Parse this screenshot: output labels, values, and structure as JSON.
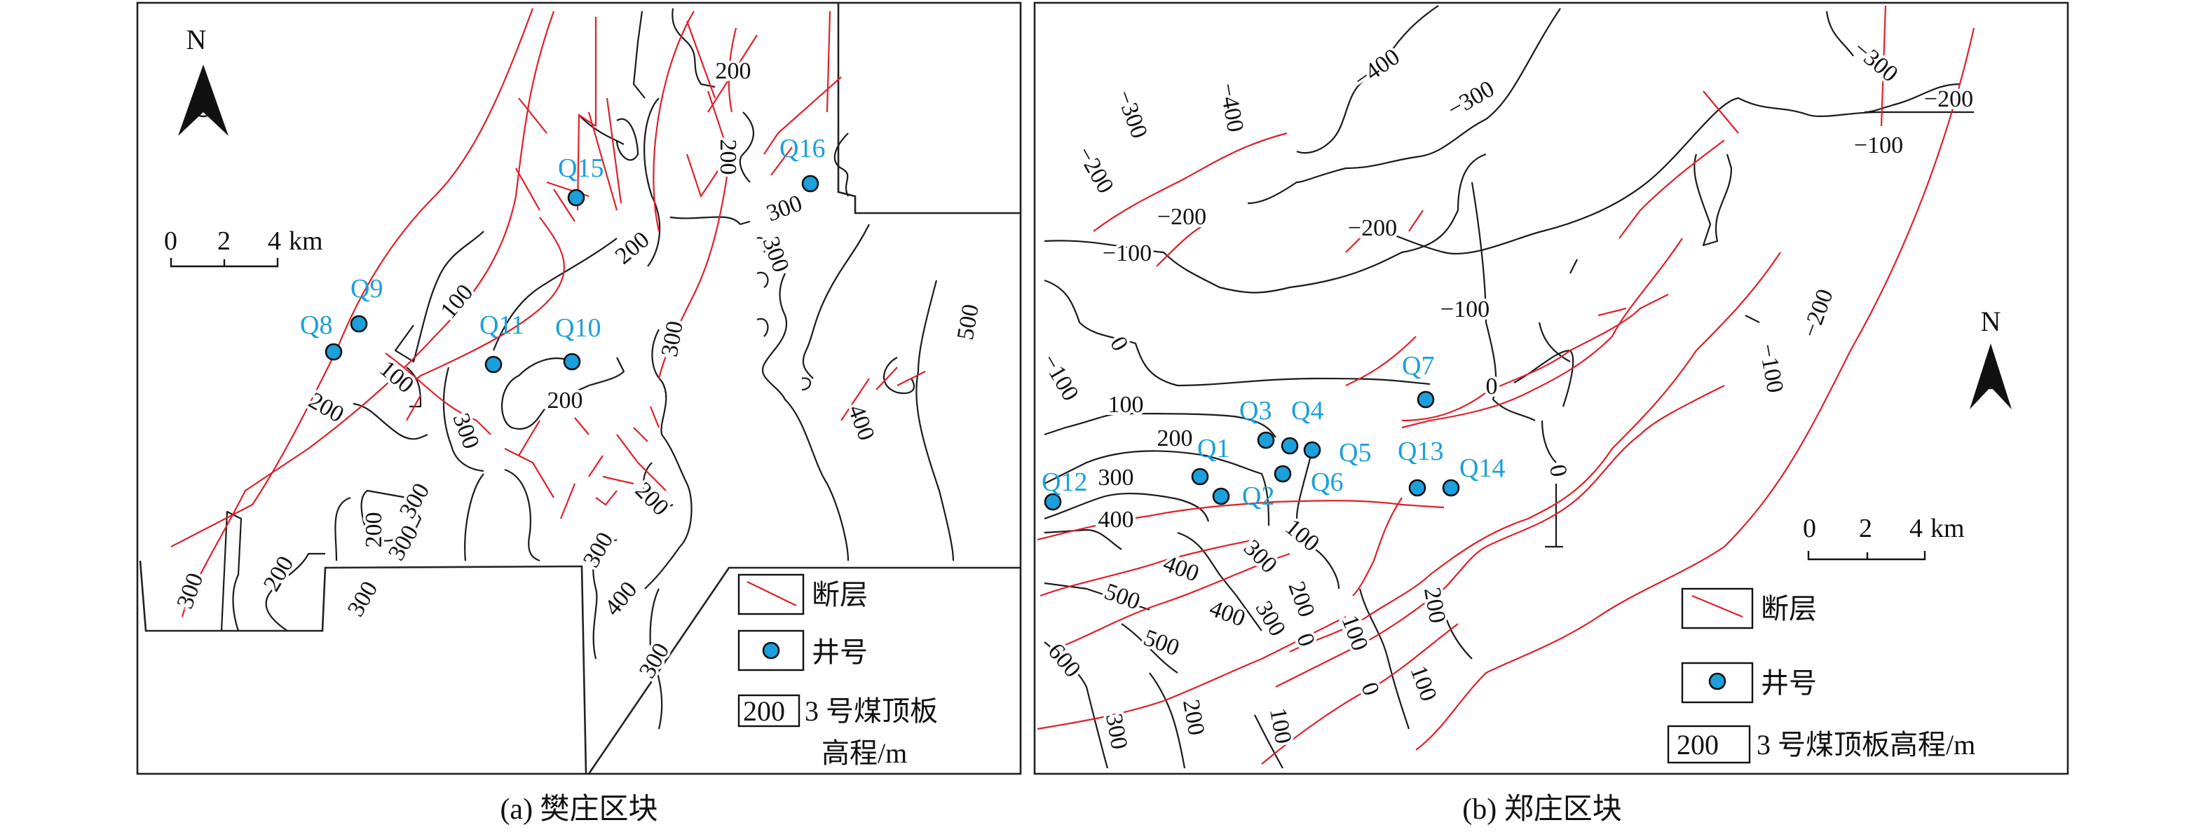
{
  "panels": [
    {
      "caption": "(a) 樊庄区块",
      "north_label": "N",
      "scale": {
        "ticks": [
          "0",
          "2",
          "4"
        ],
        "unit": "km"
      },
      "wells": [
        "Q15",
        "Q16",
        "Q9",
        "Q8",
        "Q11",
        "Q10"
      ],
      "contour_labels": [
        "200",
        "200",
        "300",
        "300",
        "200",
        "100",
        "100",
        "200",
        "200",
        "300",
        "300",
        "500",
        "400",
        "300",
        "200",
        "300",
        "300",
        "300",
        "200",
        "200",
        "300",
        "400",
        "300"
      ],
      "legend": {
        "fault": "断层",
        "well": "井号",
        "contour_sample": "200",
        "contour_line1": "3 号煤顶板",
        "contour_line2": "高程/m"
      }
    },
    {
      "caption": "(b) 郑庄区块",
      "north_label": "N",
      "scale": {
        "ticks": [
          "0",
          "2",
          "4"
        ],
        "unit": "km"
      },
      "wells": [
        "Q7",
        "Q3",
        "Q4",
        "Q5",
        "Q6",
        "Q1",
        "Q2",
        "Q12",
        "Q13",
        "Q14"
      ],
      "contour_labels": [
        "−400",
        "−300",
        "−300",
        "−200",
        "−100",
        "−400",
        "−300",
        "−200",
        "−200",
        "−200",
        "−100",
        "−100",
        "0",
        "−200",
        "−100",
        "0",
        "−100",
        "100",
        "200",
        "300",
        "400",
        "100",
        "300",
        "400",
        "500",
        "400",
        "200",
        "300",
        "500",
        "600",
        "300",
        "200",
        "0",
        "100",
        "0",
        "100",
        "200",
        "0",
        "100"
      ],
      "legend": {
        "fault": "断层",
        "well": "井号",
        "contour_sample": "200",
        "contour_text": "3 号煤顶板高程/m"
      }
    }
  ],
  "colors": {
    "fault": "#e0202a",
    "well": "#1aa0dc",
    "contour": "#1a1a1a"
  }
}
